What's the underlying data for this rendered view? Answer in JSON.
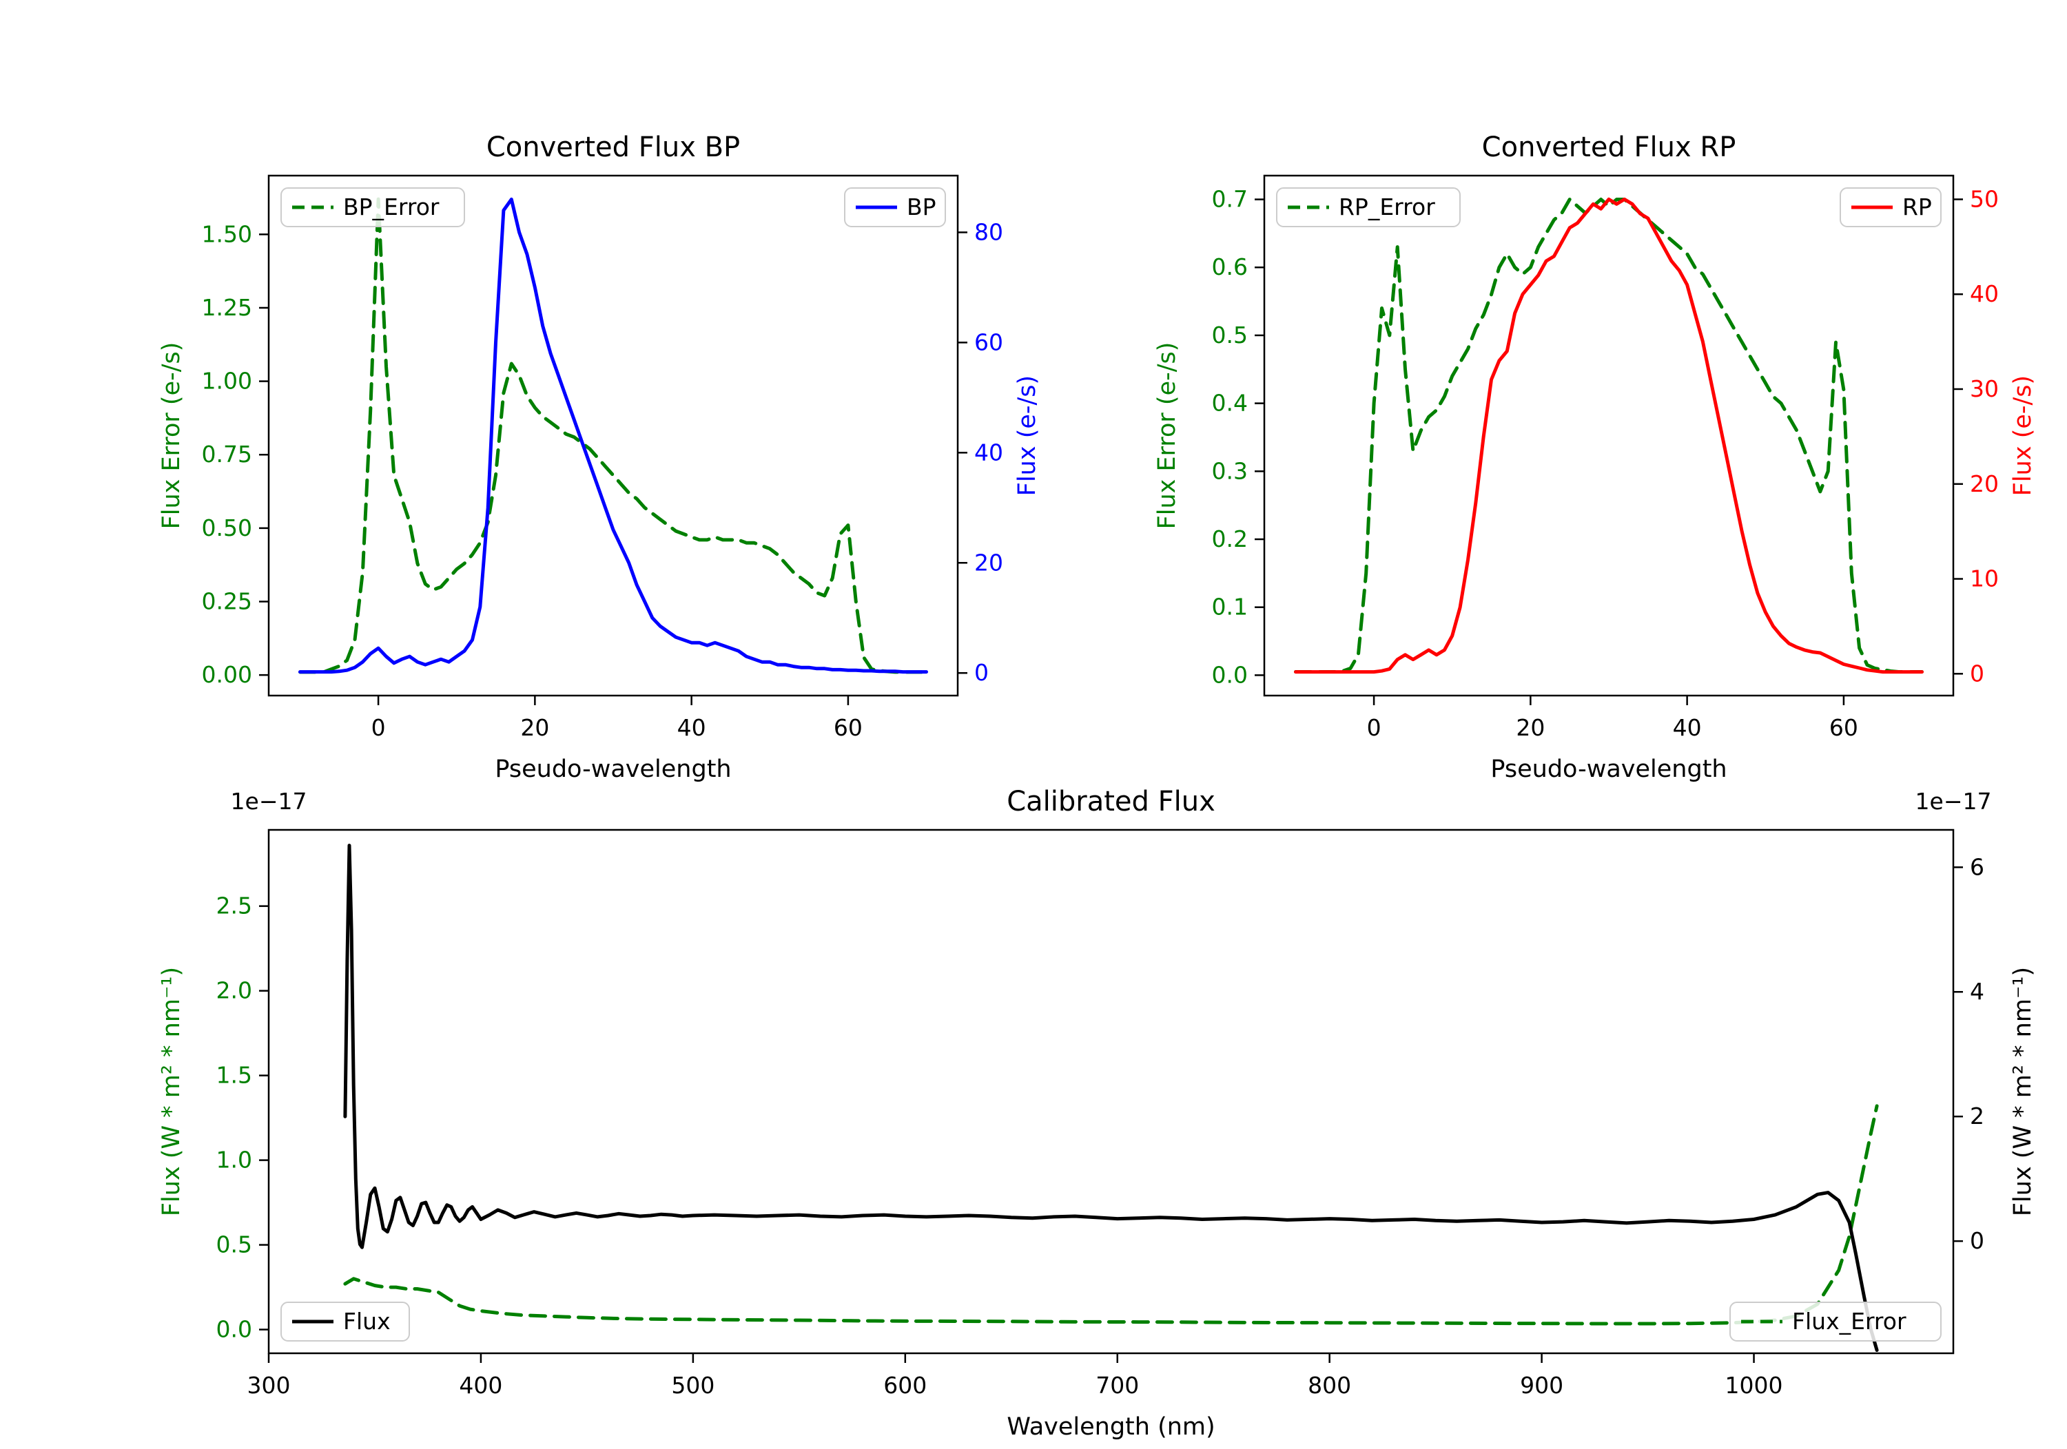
{
  "figure": {
    "background": "#ffffff",
    "accent_green": "#008000",
    "accent_blue": "#0000ff",
    "accent_red": "#ff0000",
    "accent_black": "#000000"
  },
  "chart_data": [
    {
      "id": "bp",
      "type": "line",
      "title": "Converted Flux BP",
      "xlabel": "Pseudo-wavelength",
      "ylabel_left": "Flux Error (e-/s)",
      "ylabel_right": "Flux (e-/s)",
      "left_color": "#008000",
      "right_color": "#0000ff",
      "x_range": [
        -14,
        74
      ],
      "x_tick_vals": [
        0,
        20,
        40,
        60
      ],
      "x_tick_labels": [
        "0",
        "20",
        "40",
        "60"
      ],
      "left_range": [
        -0.07,
        1.7
      ],
      "left_tick_vals": [
        0,
        0.25,
        0.5,
        0.75,
        1.0,
        1.25,
        1.5
      ],
      "left_tick_labels": [
        "0.00",
        "0.25",
        "0.50",
        "0.75",
        "1.00",
        "1.25",
        "1.50"
      ],
      "right_range": [
        -4.1,
        90.3
      ],
      "right_tick_vals": [
        0,
        20,
        40,
        60,
        80
      ],
      "right_tick_labels": [
        "0",
        "20",
        "40",
        "60",
        "80"
      ],
      "x": [
        -10,
        -9,
        -8,
        -7,
        -6,
        -5,
        -4,
        -3,
        -2,
        -1,
        0,
        1,
        2,
        3,
        4,
        5,
        6,
        7,
        8,
        9,
        10,
        11,
        12,
        13,
        14,
        15,
        16,
        17,
        18,
        19,
        20,
        21,
        22,
        23,
        24,
        25,
        26,
        27,
        28,
        29,
        30,
        31,
        32,
        33,
        34,
        35,
        36,
        37,
        38,
        39,
        40,
        41,
        42,
        43,
        44,
        45,
        46,
        47,
        48,
        49,
        50,
        51,
        52,
        53,
        54,
        55,
        56,
        57,
        58,
        59,
        60,
        61,
        62,
        63,
        64,
        65,
        66,
        67,
        68,
        69,
        70
      ],
      "series": [
        {
          "name": "BP_Error",
          "axis": "left",
          "color": "#008000",
          "dash": true,
          "legend_loc": "upper left",
          "y": [
            0.01,
            0.01,
            0.01,
            0.01,
            0.02,
            0.03,
            0.05,
            0.12,
            0.35,
            0.9,
            1.62,
            1.05,
            0.68,
            0.6,
            0.52,
            0.38,
            0.31,
            0.29,
            0.3,
            0.33,
            0.36,
            0.38,
            0.41,
            0.45,
            0.52,
            0.68,
            0.96,
            1.06,
            1.02,
            0.95,
            0.91,
            0.88,
            0.86,
            0.84,
            0.82,
            0.81,
            0.79,
            0.77,
            0.74,
            0.71,
            0.68,
            0.65,
            0.62,
            0.6,
            0.57,
            0.55,
            0.53,
            0.51,
            0.49,
            0.48,
            0.47,
            0.46,
            0.46,
            0.47,
            0.46,
            0.46,
            0.46,
            0.45,
            0.45,
            0.44,
            0.43,
            0.41,
            0.38,
            0.35,
            0.33,
            0.31,
            0.28,
            0.27,
            0.33,
            0.48,
            0.51,
            0.25,
            0.06,
            0.02,
            0.015,
            0.012,
            0.01,
            0.01,
            0.01,
            0.01,
            0.01
          ]
        },
        {
          "name": "BP",
          "axis": "right",
          "color": "#0000ff",
          "dash": false,
          "legend_loc": "upper right",
          "y": [
            0.2,
            0.2,
            0.2,
            0.2,
            0.2,
            0.3,
            0.5,
            1.0,
            2.0,
            3.5,
            4.5,
            3.0,
            1.8,
            2.5,
            3.0,
            2.0,
            1.5,
            2.0,
            2.5,
            2.0,
            3.0,
            4.0,
            6.0,
            12,
            30,
            60,
            84,
            86,
            80,
            76,
            70,
            63,
            58,
            54,
            50,
            46,
            42,
            38,
            34,
            30,
            26,
            23,
            20,
            16,
            13,
            10,
            8.5,
            7.5,
            6.5,
            6.0,
            5.5,
            5.5,
            5.0,
            5.5,
            5.0,
            4.5,
            4.0,
            3.0,
            2.5,
            2.0,
            2.0,
            1.5,
            1.5,
            1.2,
            1.0,
            1.0,
            0.8,
            0.8,
            0.6,
            0.6,
            0.5,
            0.5,
            0.4,
            0.4,
            0.3,
            0.3,
            0.3,
            0.2,
            0.2,
            0.2,
            0.2
          ]
        }
      ]
    },
    {
      "id": "rp",
      "type": "line",
      "title": "Converted Flux RP",
      "xlabel": "Pseudo-wavelength",
      "ylabel_left": "Flux Error (e-/s)",
      "ylabel_right": "Flux (e-/s)",
      "left_color": "#008000",
      "right_color": "#ff0000",
      "x_range": [
        -14,
        74
      ],
      "x_tick_vals": [
        0,
        20,
        40,
        60
      ],
      "x_tick_labels": [
        "0",
        "20",
        "40",
        "60"
      ],
      "left_range": [
        -0.03,
        0.735
      ],
      "left_tick_vals": [
        0,
        0.1,
        0.2,
        0.3,
        0.4,
        0.5,
        0.6,
        0.7
      ],
      "left_tick_labels": [
        "0.0",
        "0.1",
        "0.2",
        "0.3",
        "0.4",
        "0.5",
        "0.6",
        "0.7"
      ],
      "right_range": [
        -2.3,
        52.5
      ],
      "right_tick_vals": [
        0,
        10,
        20,
        30,
        40,
        50
      ],
      "right_tick_labels": [
        "0",
        "10",
        "20",
        "30",
        "40",
        "50"
      ],
      "x": [
        -10,
        -9,
        -8,
        -7,
        -6,
        -5,
        -4,
        -3,
        -2,
        -1,
        0,
        1,
        2,
        3,
        4,
        5,
        6,
        7,
        8,
        9,
        10,
        11,
        12,
        13,
        14,
        15,
        16,
        17,
        18,
        19,
        20,
        21,
        22,
        23,
        24,
        25,
        26,
        27,
        28,
        29,
        30,
        31,
        32,
        33,
        34,
        35,
        36,
        37,
        38,
        39,
        40,
        41,
        42,
        43,
        44,
        45,
        46,
        47,
        48,
        49,
        50,
        51,
        52,
        53,
        54,
        55,
        56,
        57,
        58,
        59,
        60,
        61,
        62,
        63,
        64,
        65,
        66,
        67,
        68,
        69,
        70
      ],
      "series": [
        {
          "name": "RP_Error",
          "axis": "left",
          "color": "#008000",
          "dash": true,
          "legend_loc": "upper left",
          "y": [
            0.005,
            0.005,
            0.005,
            0.005,
            0.005,
            0.005,
            0.006,
            0.01,
            0.03,
            0.15,
            0.4,
            0.54,
            0.5,
            0.63,
            0.45,
            0.33,
            0.36,
            0.38,
            0.39,
            0.41,
            0.44,
            0.46,
            0.48,
            0.51,
            0.53,
            0.56,
            0.6,
            0.62,
            0.6,
            0.59,
            0.6,
            0.63,
            0.65,
            0.67,
            0.68,
            0.7,
            0.69,
            0.68,
            0.69,
            0.7,
            0.69,
            0.7,
            0.7,
            0.69,
            0.68,
            0.67,
            0.66,
            0.65,
            0.64,
            0.63,
            0.62,
            0.6,
            0.59,
            0.57,
            0.55,
            0.53,
            0.51,
            0.49,
            0.47,
            0.45,
            0.43,
            0.41,
            0.4,
            0.38,
            0.36,
            0.33,
            0.3,
            0.27,
            0.3,
            0.49,
            0.42,
            0.15,
            0.04,
            0.015,
            0.01,
            0.008,
            0.006,
            0.005,
            0.005,
            0.005,
            0.005
          ]
        },
        {
          "name": "RP",
          "axis": "right",
          "color": "#ff0000",
          "dash": false,
          "legend_loc": "upper right",
          "y": [
            0.2,
            0.2,
            0.2,
            0.2,
            0.2,
            0.2,
            0.2,
            0.2,
            0.2,
            0.2,
            0.2,
            0.3,
            0.5,
            1.5,
            2.0,
            1.5,
            2.0,
            2.5,
            2.0,
            2.5,
            4,
            7,
            12,
            18,
            25,
            31,
            33,
            34,
            38,
            40,
            41,
            42,
            43.5,
            44,
            45.5,
            47,
            47.5,
            48.5,
            49.5,
            49,
            50,
            49.5,
            50,
            49.5,
            48.5,
            48,
            46.5,
            45,
            43.5,
            42.5,
            41,
            38,
            35,
            31,
            27,
            23,
            19,
            15,
            11.5,
            8.5,
            6.5,
            5,
            4,
            3.2,
            2.8,
            2.5,
            2.3,
            2.2,
            1.8,
            1.4,
            1.0,
            0.8,
            0.6,
            0.4,
            0.3,
            0.2,
            0.2,
            0.2,
            0.2,
            0.2,
            0.2
          ]
        }
      ]
    },
    {
      "id": "cal",
      "type": "line",
      "title": "Calibrated Flux",
      "xlabel": "Wavelength (nm)",
      "ylabel_left": "Flux (W * m² * nm⁻¹)",
      "ylabel_right": "Flux (W * m² * nm⁻¹)",
      "left_color": "#008000",
      "right_color": "#000000",
      "left_offset_label": "1e−17",
      "right_offset_label": "1e−17",
      "x_range": [
        300,
        1094
      ],
      "x_tick_vals": [
        300,
        400,
        500,
        600,
        700,
        800,
        900,
        1000
      ],
      "x_tick_labels": [
        "300",
        "400",
        "500",
        "600",
        "700",
        "800",
        "900",
        "1000"
      ],
      "left_range": [
        -0.14,
        2.95
      ],
      "left_tick_vals": [
        0,
        0.5,
        1.0,
        1.5,
        2.0,
        2.5
      ],
      "left_tick_labels": [
        "0.0",
        "0.5",
        "1.0",
        "1.5",
        "2.0",
        "2.5"
      ],
      "right_range": [
        -1.8,
        6.6
      ],
      "right_tick_vals": [
        0,
        2,
        4,
        6
      ],
      "right_tick_labels": [
        "0",
        "2",
        "4",
        "6"
      ],
      "series": [
        {
          "name": "Flux",
          "axis": "right",
          "color": "#000000",
          "dash": false,
          "legend_loc": "lower left",
          "x": [
            336,
            337,
            338,
            339,
            340,
            341,
            342,
            343,
            344,
            346,
            348,
            350,
            352,
            354,
            356,
            358,
            360,
            362,
            364,
            366,
            368,
            370,
            372,
            374,
            376,
            378,
            380,
            382,
            384,
            386,
            388,
            390,
            392,
            394,
            396,
            398,
            400,
            404,
            408,
            412,
            416,
            420,
            425,
            430,
            435,
            440,
            445,
            450,
            455,
            460,
            465,
            470,
            475,
            480,
            485,
            490,
            495,
            500,
            510,
            520,
            530,
            540,
            550,
            560,
            570,
            580,
            590,
            600,
            610,
            620,
            630,
            640,
            650,
            660,
            670,
            680,
            690,
            700,
            710,
            720,
            730,
            740,
            750,
            760,
            770,
            780,
            790,
            800,
            810,
            820,
            830,
            840,
            850,
            860,
            870,
            880,
            890,
            900,
            910,
            920,
            930,
            940,
            950,
            960,
            970,
            980,
            990,
            1000,
            1010,
            1020,
            1025,
            1030,
            1035,
            1040,
            1045,
            1048,
            1052,
            1055,
            1058
          ],
          "y": [
            2.0,
            4.5,
            6.35,
            5.0,
            2.5,
            1.0,
            0.2,
            -0.05,
            -0.1,
            0.3,
            0.75,
            0.85,
            0.55,
            0.2,
            0.15,
            0.35,
            0.65,
            0.7,
            0.5,
            0.3,
            0.25,
            0.4,
            0.6,
            0.62,
            0.45,
            0.3,
            0.3,
            0.45,
            0.58,
            0.55,
            0.4,
            0.32,
            0.38,
            0.5,
            0.55,
            0.45,
            0.35,
            0.42,
            0.5,
            0.45,
            0.38,
            0.42,
            0.47,
            0.43,
            0.39,
            0.42,
            0.45,
            0.42,
            0.39,
            0.41,
            0.44,
            0.42,
            0.4,
            0.41,
            0.43,
            0.42,
            0.4,
            0.41,
            0.42,
            0.41,
            0.4,
            0.41,
            0.42,
            0.4,
            0.39,
            0.41,
            0.42,
            0.4,
            0.39,
            0.4,
            0.41,
            0.4,
            0.38,
            0.37,
            0.39,
            0.4,
            0.38,
            0.36,
            0.37,
            0.38,
            0.37,
            0.35,
            0.36,
            0.37,
            0.36,
            0.34,
            0.35,
            0.36,
            0.35,
            0.33,
            0.34,
            0.35,
            0.33,
            0.32,
            0.33,
            0.34,
            0.32,
            0.3,
            0.31,
            0.33,
            0.31,
            0.29,
            0.31,
            0.33,
            0.32,
            0.3,
            0.32,
            0.35,
            0.42,
            0.55,
            0.65,
            0.75,
            0.78,
            0.65,
            0.3,
            -0.2,
            -0.9,
            -1.4,
            -1.75
          ]
        },
        {
          "name": "Flux_Error",
          "axis": "left",
          "color": "#008000",
          "dash": true,
          "legend_loc": "lower right",
          "x": [
            336,
            340,
            345,
            350,
            355,
            360,
            365,
            370,
            375,
            380,
            385,
            390,
            395,
            400,
            410,
            420,
            430,
            440,
            450,
            465,
            480,
            500,
            525,
            550,
            575,
            600,
            625,
            650,
            675,
            700,
            725,
            750,
            775,
            800,
            825,
            850,
            875,
            900,
            925,
            950,
            970,
            990,
            1000,
            1010,
            1020,
            1030,
            1040,
            1045,
            1050,
            1055,
            1058
          ],
          "y": [
            0.27,
            0.3,
            0.28,
            0.26,
            0.25,
            0.25,
            0.24,
            0.24,
            0.23,
            0.22,
            0.18,
            0.14,
            0.12,
            0.11,
            0.095,
            0.085,
            0.08,
            0.075,
            0.07,
            0.065,
            0.062,
            0.06,
            0.057,
            0.055,
            0.052,
            0.05,
            0.049,
            0.048,
            0.046,
            0.045,
            0.044,
            0.042,
            0.041,
            0.04,
            0.039,
            0.038,
            0.037,
            0.036,
            0.035,
            0.035,
            0.036,
            0.04,
            0.045,
            0.055,
            0.08,
            0.15,
            0.35,
            0.55,
            0.85,
            1.15,
            1.32
          ]
        }
      ]
    }
  ]
}
